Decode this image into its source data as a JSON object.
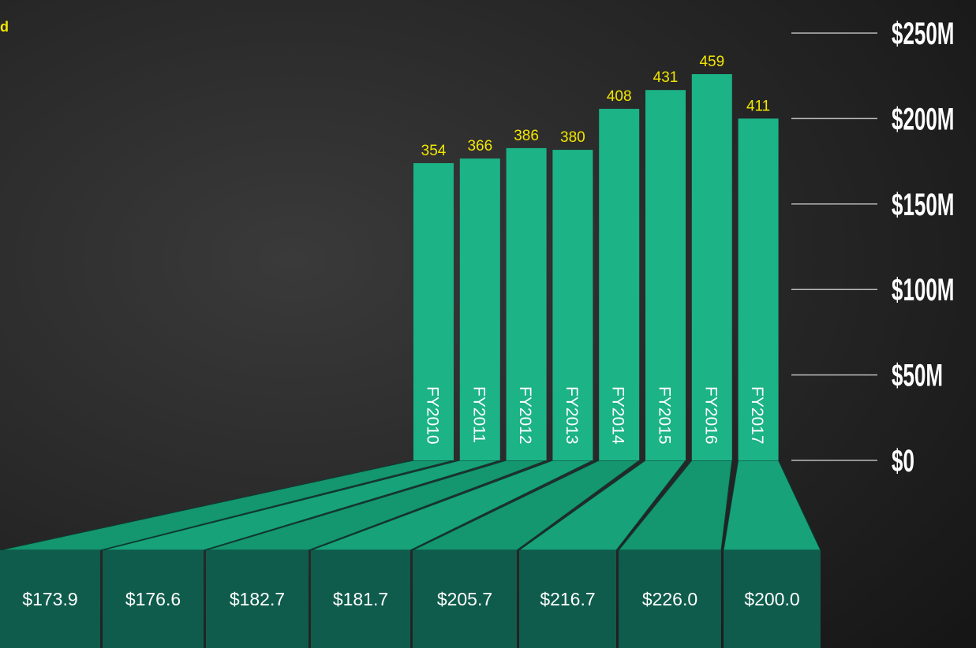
{
  "chart_data": {
    "type": "bar",
    "title": "d",
    "categories": [
      "FY2010",
      "FY2011",
      "FY2012",
      "FY2013",
      "FY2014",
      "FY2015",
      "FY2016",
      "FY2017"
    ],
    "values": [
      173.9,
      176.6,
      182.7,
      181.7,
      205.7,
      216.7,
      226.0,
      200.0
    ],
    "value_labels": [
      "$173.9",
      "$176.6",
      "$182.7",
      "$181.7",
      "$205.7",
      "$216.7",
      "$226.0",
      "$200.0"
    ],
    "top_labels": [
      354,
      366,
      386,
      380,
      408,
      431,
      459,
      411
    ],
    "color": "#1cb386",
    "ylim": [
      0,
      250
    ],
    "yticks": [
      {
        "value": 0,
        "label": "$0"
      },
      {
        "value": 50,
        "label": "$50M"
      },
      {
        "value": 100,
        "label": "$100M"
      },
      {
        "value": 150,
        "label": "$150M"
      },
      {
        "value": 200,
        "label": "$200M"
      },
      {
        "value": 250,
        "label": "$250M"
      }
    ],
    "grid": true
  }
}
